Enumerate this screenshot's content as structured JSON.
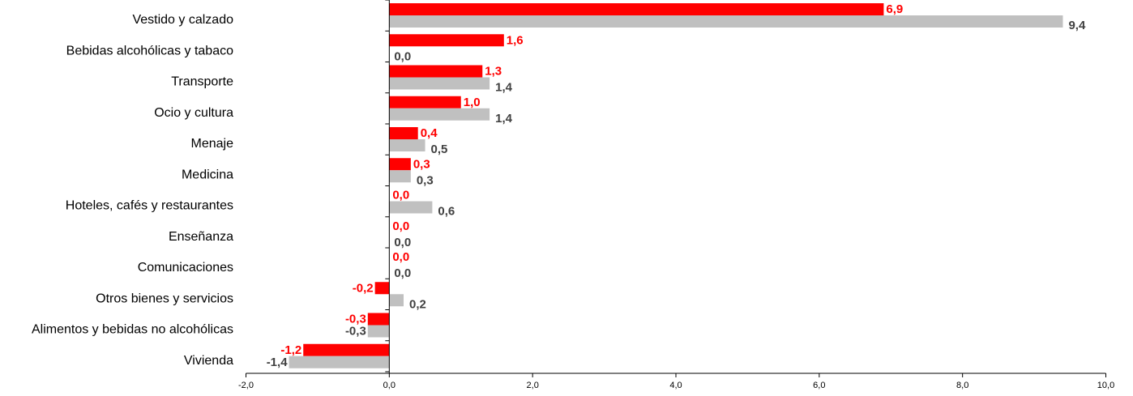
{
  "chart_data": {
    "type": "bar",
    "orientation": "horizontal",
    "categories": [
      "Vestido y calzado",
      "Bebidas alcohólicas y tabaco",
      "Transporte",
      "Ocio y cultura",
      "Menaje",
      "Medicina",
      "Hoteles, cafés y restaurantes",
      "Enseñanza",
      "Comunicaciones",
      "Otros bienes y servicios",
      "Alimentos y bebidas no alcohólicas",
      "Vivienda"
    ],
    "series": [
      {
        "color": "#ff0000",
        "label_color": "#ff0000",
        "values": [
          6.9,
          1.6,
          1.3,
          1.0,
          0.4,
          0.3,
          0.0,
          0.0,
          0.0,
          -0.2,
          -0.3,
          -1.2
        ],
        "labels": [
          "6,9",
          "1,6",
          "1,3",
          "1,0",
          "0,4",
          "0,3",
          "0,0",
          "0,0",
          "0,0",
          "-0,2",
          "-0,3",
          "-1,2"
        ]
      },
      {
        "color": "#c0c0c0",
        "label_color": "#404040",
        "values": [
          9.4,
          0.0,
          1.4,
          1.4,
          0.5,
          0.3,
          0.6,
          0.0,
          0.0,
          0.2,
          -0.3,
          -1.4
        ],
        "labels": [
          "9,4",
          "0,0",
          "1,4",
          "1,4",
          "0,5",
          "0,3",
          "0,6",
          "0,0",
          "0,0",
          "0,2",
          "-0,3",
          "-1,4"
        ]
      }
    ],
    "xlim": [
      -2,
      10
    ],
    "x_ticks": [
      -2,
      0,
      2,
      4,
      6,
      8,
      10
    ],
    "x_tick_labels": [
      "-2,0",
      "0,0",
      "2,0",
      "4,0",
      "6,0",
      "8,0",
      "10,0"
    ],
    "grid": false,
    "legend": "none"
  }
}
